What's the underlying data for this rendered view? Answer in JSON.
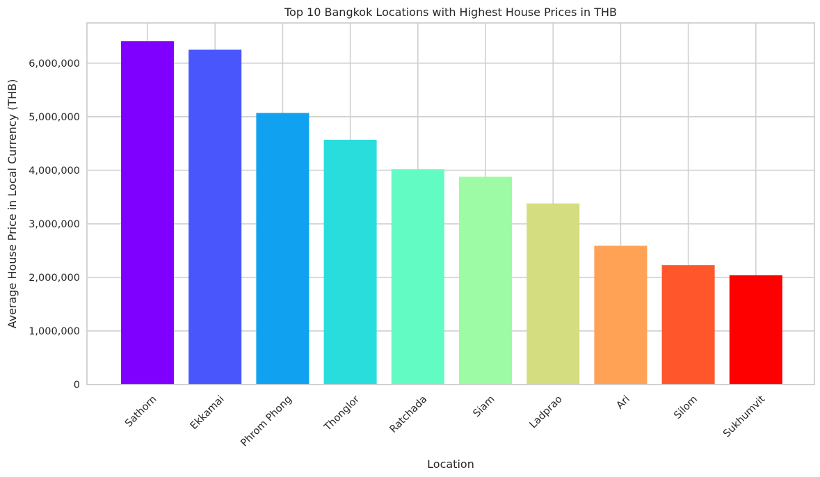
{
  "chart_data": {
    "type": "bar",
    "title": "Top 10 Bangkok Locations with Highest House Prices in THB",
    "xlabel": "Location",
    "ylabel": "Average House Price in Local Currency (THB)",
    "categories": [
      "Sathorn",
      "Ekkamai",
      "Phrom Phong",
      "Thonglor",
      "Ratchada",
      "Siam",
      "Ladprao",
      "Ari",
      "Silom",
      "Sukhumvit"
    ],
    "values": [
      6410000,
      6250000,
      5070000,
      4570000,
      4020000,
      3880000,
      3380000,
      2590000,
      2230000,
      2040000
    ],
    "colors": [
      "#8000ff",
      "#4856fb",
      "#10a2f0",
      "#2adddd",
      "#62fbc4",
      "#9cfba4",
      "#d4dd80",
      "#ffa256",
      "#ff562c",
      "#ff0000"
    ],
    "ylim": [
      0,
      6750000
    ],
    "yticks": [
      0,
      1000000,
      2000000,
      3000000,
      4000000,
      5000000,
      6000000
    ],
    "ytick_labels": [
      "0",
      "1,000,000",
      "2,000,000",
      "3,000,000",
      "4,000,000",
      "5,000,000",
      "6,000,000"
    ],
    "grid": true,
    "x_tick_rotation": 45
  }
}
